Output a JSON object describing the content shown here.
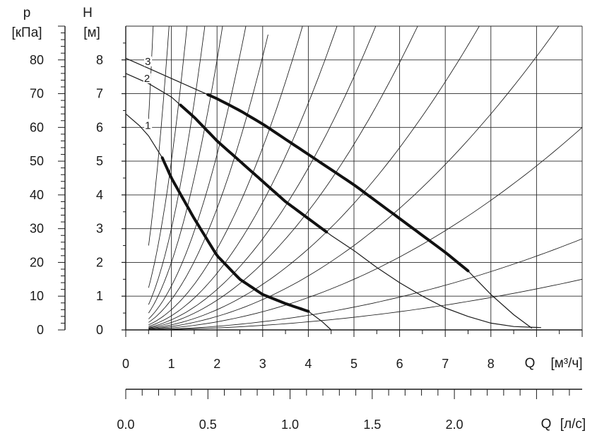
{
  "chart_data": {
    "type": "line",
    "title": "",
    "p_axis": {
      "label": "p",
      "unit": "[кПа]",
      "ticks": [
        "0",
        "10",
        "20",
        "30",
        "40",
        "50",
        "60",
        "70",
        "80"
      ],
      "range": [
        0,
        90
      ]
    },
    "h_axis": {
      "label": "H",
      "unit": "[м]",
      "ticks": [
        "0",
        "1",
        "2",
        "3",
        "4",
        "5",
        "6",
        "7",
        "8"
      ],
      "range": [
        0,
        9
      ]
    },
    "q_axis_m3h": {
      "label": "Q",
      "unit": "[м³/ч]",
      "ticks": [
        "0",
        "1",
        "2",
        "3",
        "4",
        "5",
        "6",
        "7",
        "8"
      ],
      "range": [
        0,
        10
      ]
    },
    "q_axis_ls": {
      "label": "Q",
      "unit": "[л/с]",
      "ticks": [
        "0.0",
        "0.5",
        "1.0",
        "1.5",
        "2.0"
      ],
      "range": [
        0,
        2.8
      ]
    },
    "grid": true,
    "series": [
      {
        "name": "1",
        "points": [
          [
            0,
            6.4
          ],
          [
            0.3,
            6.05
          ],
          [
            0.5,
            5.75
          ],
          [
            0.8,
            5.1
          ],
          [
            1.0,
            4.5
          ],
          [
            1.5,
            3.3
          ],
          [
            2.0,
            2.2
          ],
          [
            2.5,
            1.5
          ],
          [
            3.0,
            1.05
          ],
          [
            3.5,
            0.78
          ],
          [
            4.0,
            0.55
          ],
          [
            4.3,
            0.25
          ],
          [
            4.5,
            0
          ]
        ],
        "bold_range": [
          0.8,
          4.0
        ]
      },
      {
        "name": "2",
        "points": [
          [
            0,
            7.6
          ],
          [
            0.5,
            7.3
          ],
          [
            1.0,
            6.9
          ],
          [
            1.5,
            6.3
          ],
          [
            2.0,
            5.6
          ],
          [
            2.5,
            5.0
          ],
          [
            3.0,
            4.4
          ],
          [
            3.5,
            3.8
          ],
          [
            4.0,
            3.3
          ],
          [
            4.5,
            2.8
          ],
          [
            5.0,
            2.35
          ],
          [
            5.5,
            1.85
          ],
          [
            6.0,
            1.4
          ],
          [
            6.5,
            1.0
          ],
          [
            7.0,
            0.65
          ],
          [
            7.5,
            0.4
          ],
          [
            8.0,
            0.2
          ],
          [
            8.5,
            0.1
          ],
          [
            9.1,
            0.07
          ]
        ],
        "bold_range": [
          1.2,
          4.4
        ]
      },
      {
        "name": "3",
        "points": [
          [
            0,
            8.05
          ],
          [
            0.5,
            7.75
          ],
          [
            1.0,
            7.45
          ],
          [
            1.5,
            7.15
          ],
          [
            2.0,
            6.85
          ],
          [
            2.5,
            6.5
          ],
          [
            3.0,
            6.1
          ],
          [
            3.5,
            5.65
          ],
          [
            4.0,
            5.2
          ],
          [
            4.5,
            4.75
          ],
          [
            5.0,
            4.3
          ],
          [
            5.5,
            3.8
          ],
          [
            6.0,
            3.3
          ],
          [
            6.5,
            2.8
          ],
          [
            7.0,
            2.3
          ],
          [
            7.5,
            1.75
          ],
          [
            8.0,
            1.05
          ],
          [
            8.5,
            0.45
          ],
          [
            8.9,
            0.05
          ]
        ],
        "bold_range": [
          1.8,
          7.5
        ]
      }
    ],
    "system_curves_k": [
      25,
      10,
      5,
      3,
      2,
      1.3,
      0.9,
      0.6,
      0.42,
      0.3,
      0.22,
      0.15,
      0.1,
      0.06,
      0.027,
      0.015
    ]
  }
}
